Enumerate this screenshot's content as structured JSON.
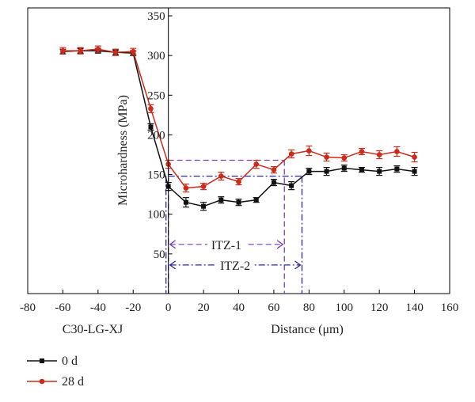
{
  "chart_data": {
    "type": "line",
    "xlabel": "Distance (μm)",
    "ylabel": "Microhardness (MPa)",
    "sample_label": "C30-LG-XJ",
    "xlim": [
      -80,
      160
    ],
    "ylim": [
      0,
      360
    ],
    "x_ticks": [
      -80,
      -60,
      -40,
      -20,
      0,
      20,
      40,
      60,
      80,
      100,
      120,
      140,
      160
    ],
    "y_ticks": [
      50,
      100,
      150,
      200,
      250,
      300,
      350
    ],
    "grid": false,
    "legend_position": "bottom-left",
    "series": [
      {
        "name": "0 d",
        "color": "#111111",
        "marker": "square",
        "x": [
          -60,
          -50,
          -40,
          -30,
          -20,
          -10,
          0,
          10,
          20,
          30,
          40,
          50,
          60,
          70,
          80,
          90,
          100,
          110,
          120,
          130,
          140
        ],
        "y": [
          305,
          306,
          306,
          304,
          303,
          210,
          135,
          115,
          110,
          118,
          115,
          118,
          140,
          136,
          154,
          154,
          158,
          156,
          154,
          157,
          154
        ],
        "err": [
          3,
          3,
          3,
          3,
          3,
          4,
          5,
          6,
          5,
          4,
          4,
          3,
          4,
          5,
          4,
          5,
          4,
          3,
          5,
          4,
          5
        ]
      },
      {
        "name": "28 d",
        "color": "#cc2a1a",
        "marker": "circle",
        "x": [
          -60,
          -50,
          -40,
          -30,
          -20,
          -10,
          0,
          10,
          20,
          30,
          40,
          50,
          60,
          70,
          80,
          90,
          100,
          110,
          120,
          130,
          140
        ],
        "y": [
          306,
          306,
          308,
          304,
          305,
          233,
          163,
          133,
          135,
          148,
          141,
          163,
          156,
          176,
          180,
          172,
          171,
          179,
          175,
          179,
          172
        ],
        "err": [
          4,
          4,
          4,
          4,
          4,
          5,
          5,
          5,
          4,
          5,
          4,
          5,
          4,
          5,
          6,
          5,
          4,
          4,
          5,
          6,
          6
        ]
      }
    ],
    "annotations": [
      {
        "label": "ITZ-1",
        "x_start": 0,
        "x_end": 66,
        "y_line": 168,
        "color": "#7a3fb0",
        "style": "dash"
      },
      {
        "label": "ITZ-2",
        "x_start": 0,
        "x_end": 76,
        "y_line": 148,
        "color": "#2a2a9a",
        "style": "dash-dot"
      }
    ]
  }
}
